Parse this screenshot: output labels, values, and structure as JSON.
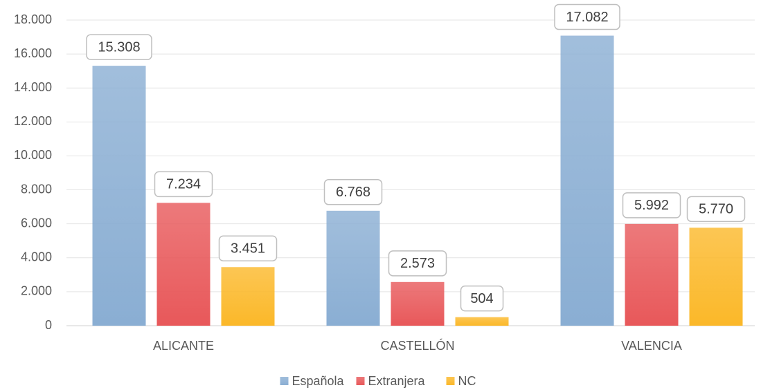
{
  "chart_data": {
    "type": "bar",
    "categories": [
      "ALICANTE",
      "CASTELLÓN",
      "VALENCIA"
    ],
    "series": [
      {
        "name": "Española",
        "color": "#8aaed3",
        "values": [
          15308,
          6768,
          17082
        ],
        "value_labels": [
          "15.308",
          "6.768",
          "17.082"
        ]
      },
      {
        "name": "Extranjera",
        "color": "#e8585a",
        "values": [
          7234,
          2573,
          5992
        ],
        "value_labels": [
          "7.234",
          "2.573",
          "5.992"
        ]
      },
      {
        "name": "NC",
        "color": "#fbb829",
        "values": [
          3451,
          504,
          5770
        ],
        "value_labels": [
          "3.451",
          "504",
          "5.770"
        ]
      }
    ],
    "ylim": [
      0,
      18000
    ],
    "yticks": [
      0,
      {
        "value": 2000,
        "label": "2.000"
      },
      {
        "value": 4000,
        "label": "4.000"
      },
      {
        "value": 6000,
        "label": "6.000"
      },
      {
        "value": 8000,
        "label": "8.000"
      },
      {
        "value": 10000,
        "label": "10.000"
      },
      {
        "value": 12000,
        "label": "12.000"
      },
      {
        "value": 14000,
        "label": "14.000"
      },
      {
        "value": 16000,
        "label": "16.000"
      },
      {
        "value": 18000,
        "label": "18.000"
      }
    ],
    "grid": true,
    "legend": "bottom"
  }
}
